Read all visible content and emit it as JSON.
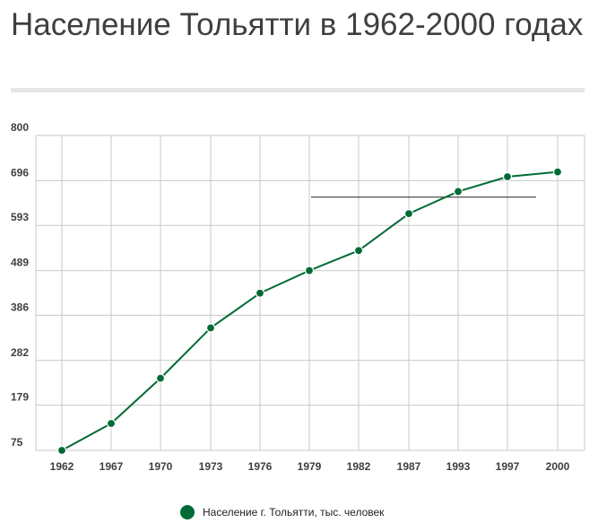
{
  "title": "Население Тольятти в 1962-2000 годах",
  "colors": {
    "series": "#006b35",
    "grid": "#c8c8c8",
    "text": "#3f3f3f"
  },
  "legend": {
    "label": "Население г. Тольятти, тыс. человек",
    "placement": "bottom-center"
  },
  "chart_data": {
    "type": "line",
    "title": "Население Тольятти в 1962-2000 годах",
    "xlabel": "",
    "ylabel": "",
    "categories": [
      "1962",
      "1967",
      "1970",
      "1973",
      "1976",
      "1979",
      "1982",
      "1987",
      "1993",
      "1997",
      "2000"
    ],
    "y_ticks": [
      "75",
      "179",
      "282",
      "386",
      "489",
      "593",
      "696",
      "800"
    ],
    "ylim": [
      75,
      800
    ],
    "grid": true,
    "series": [
      {
        "name": "Население г. Тольятти, тыс. человек",
        "values": [
          75,
          137,
          241,
          357,
          437,
          489,
          535,
          620,
          671,
          705,
          716
        ]
      }
    ],
    "annotations": [
      {
        "type": "horizontal-line",
        "y": 658,
        "x_from": "1979",
        "x_to": "1997"
      }
    ]
  }
}
